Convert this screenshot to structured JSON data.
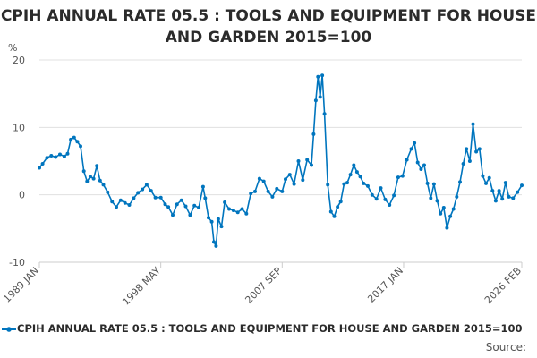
{
  "chart_data": {
    "type": "line",
    "title": "CPIH ANNUAL RATE 05.5 : TOOLS AND EQUIPMENT FOR HOUSE AND GARDEN 2015=100",
    "ylabel": "%",
    "xlabel": "",
    "ylim": [
      -10,
      20
    ],
    "yticks": [
      -10,
      0,
      10,
      20
    ],
    "xlim": [
      "1989-01",
      "2026-02"
    ],
    "xticks": [
      "1989 JAN",
      "1998 MAY",
      "2007 SEP",
      "2017 JAN",
      "2026 FEB"
    ],
    "grid": true,
    "legend_position": "bottom",
    "series": [
      {
        "name": "CPIH ANNUAL RATE 05.5 : TOOLS AND EQUIPMENT FOR HOUSE AND GARDEN 2015=100",
        "color": "#0075be",
        "points": [
          [
            "1989-01",
            4.0
          ],
          [
            "1989-04",
            4.6
          ],
          [
            "1989-08",
            5.5
          ],
          [
            "1989-12",
            5.8
          ],
          [
            "1990-04",
            5.6
          ],
          [
            "1990-08",
            6.0
          ],
          [
            "1990-12",
            5.7
          ],
          [
            "1991-03",
            6.1
          ],
          [
            "1991-06",
            8.2
          ],
          [
            "1991-09",
            8.5
          ],
          [
            "1991-12",
            7.9
          ],
          [
            "1992-03",
            7.2
          ],
          [
            "1992-06",
            3.5
          ],
          [
            "1992-09",
            2.0
          ],
          [
            "1992-12",
            2.7
          ],
          [
            "1993-03",
            2.4
          ],
          [
            "1993-06",
            4.3
          ],
          [
            "1993-09",
            2.1
          ],
          [
            "1993-12",
            1.5
          ],
          [
            "1994-04",
            0.4
          ],
          [
            "1994-08",
            -1.0
          ],
          [
            "1994-12",
            -1.8
          ],
          [
            "1995-04",
            -0.8
          ],
          [
            "1995-08",
            -1.2
          ],
          [
            "1995-12",
            -1.5
          ],
          [
            "1996-04",
            -0.5
          ],
          [
            "1996-08",
            0.3
          ],
          [
            "1996-12",
            0.8
          ],
          [
            "1997-04",
            1.5
          ],
          [
            "1997-08",
            0.6
          ],
          [
            "1997-12",
            -0.4
          ],
          [
            "1998-05",
            -0.4
          ],
          [
            "1998-09",
            -1.4
          ],
          [
            "1998-12",
            -1.8
          ],
          [
            "1999-04",
            -3.0
          ],
          [
            "1999-08",
            -1.4
          ],
          [
            "1999-12",
            -0.8
          ],
          [
            "2000-04",
            -1.7
          ],
          [
            "2000-08",
            -3.0
          ],
          [
            "2000-12",
            -1.6
          ],
          [
            "2001-04",
            -1.9
          ],
          [
            "2001-08",
            1.2
          ],
          [
            "2001-10",
            -0.5
          ],
          [
            "2002-01",
            -3.4
          ],
          [
            "2002-04",
            -4.0
          ],
          [
            "2002-06",
            -7.0
          ],
          [
            "2002-08",
            -7.6
          ],
          [
            "2002-10",
            -3.6
          ],
          [
            "2003-01",
            -4.7
          ],
          [
            "2003-04",
            -1.1
          ],
          [
            "2003-08",
            -2.1
          ],
          [
            "2003-12",
            -2.3
          ],
          [
            "2004-04",
            -2.6
          ],
          [
            "2004-08",
            -2.1
          ],
          [
            "2004-12",
            -2.8
          ],
          [
            "2005-04",
            0.2
          ],
          [
            "2005-08",
            0.5
          ],
          [
            "2005-12",
            2.4
          ],
          [
            "2006-04",
            2.0
          ],
          [
            "2006-08",
            0.5
          ],
          [
            "2006-12",
            -0.3
          ],
          [
            "2007-04",
            0.9
          ],
          [
            "2007-09",
            0.5
          ],
          [
            "2007-12",
            2.3
          ],
          [
            "2008-04",
            3.0
          ],
          [
            "2008-08",
            1.6
          ],
          [
            "2008-12",
            5.0
          ],
          [
            "2009-04",
            2.2
          ],
          [
            "2009-08",
            5.2
          ],
          [
            "2009-12",
            4.4
          ],
          [
            "2010-02",
            9.0
          ],
          [
            "2010-04",
            14.0
          ],
          [
            "2010-06",
            17.5
          ],
          [
            "2010-08",
            14.5
          ],
          [
            "2010-10",
            17.7
          ],
          [
            "2010-12",
            12.0
          ],
          [
            "2011-03",
            1.5
          ],
          [
            "2011-06",
            -2.5
          ],
          [
            "2011-09",
            -3.2
          ],
          [
            "2011-12",
            -1.8
          ],
          [
            "2012-03",
            -1.0
          ],
          [
            "2012-06",
            1.6
          ],
          [
            "2012-09",
            1.8
          ],
          [
            "2012-12",
            3.0
          ],
          [
            "2013-03",
            4.4
          ],
          [
            "2013-06",
            3.4
          ],
          [
            "2013-09",
            2.7
          ],
          [
            "2013-12",
            1.7
          ],
          [
            "2014-04",
            1.3
          ],
          [
            "2014-08",
            0.0
          ],
          [
            "2014-12",
            -0.6
          ],
          [
            "2015-04",
            1.0
          ],
          [
            "2015-08",
            -0.7
          ],
          [
            "2015-12",
            -1.5
          ],
          [
            "2016-04",
            -0.1
          ],
          [
            "2016-08",
            2.6
          ],
          [
            "2016-12",
            2.8
          ],
          [
            "2017-04",
            5.2
          ],
          [
            "2017-08",
            6.8
          ],
          [
            "2017-11",
            7.7
          ],
          [
            "2018-02",
            4.8
          ],
          [
            "2018-05",
            3.8
          ],
          [
            "2018-08",
            4.4
          ],
          [
            "2018-11",
            1.7
          ],
          [
            "2019-02",
            -0.5
          ],
          [
            "2019-05",
            1.6
          ],
          [
            "2019-08",
            -0.9
          ],
          [
            "2019-11",
            -2.8
          ],
          [
            "2020-02",
            -1.9
          ],
          [
            "2020-05",
            -4.9
          ],
          [
            "2020-08",
            -3.2
          ],
          [
            "2020-11",
            -2.1
          ],
          [
            "2021-02",
            -0.3
          ],
          [
            "2021-05",
            1.9
          ],
          [
            "2021-08",
            4.6
          ],
          [
            "2021-11",
            6.8
          ],
          [
            "2022-02",
            5.0
          ],
          [
            "2022-05",
            10.5
          ],
          [
            "2022-08",
            6.4
          ],
          [
            "2022-11",
            6.8
          ],
          [
            "2023-02",
            2.8
          ],
          [
            "2023-05",
            1.7
          ],
          [
            "2023-08",
            2.5
          ],
          [
            "2023-11",
            0.6
          ],
          [
            "2024-02",
            -0.9
          ],
          [
            "2024-05",
            0.6
          ],
          [
            "2024-08",
            -0.6
          ],
          [
            "2024-11",
            1.8
          ],
          [
            "2025-02",
            -0.3
          ],
          [
            "2025-06",
            -0.5
          ],
          [
            "2025-10",
            0.4
          ],
          [
            "2026-02",
            1.4
          ]
        ]
      }
    ],
    "source_label": "Source:"
  }
}
